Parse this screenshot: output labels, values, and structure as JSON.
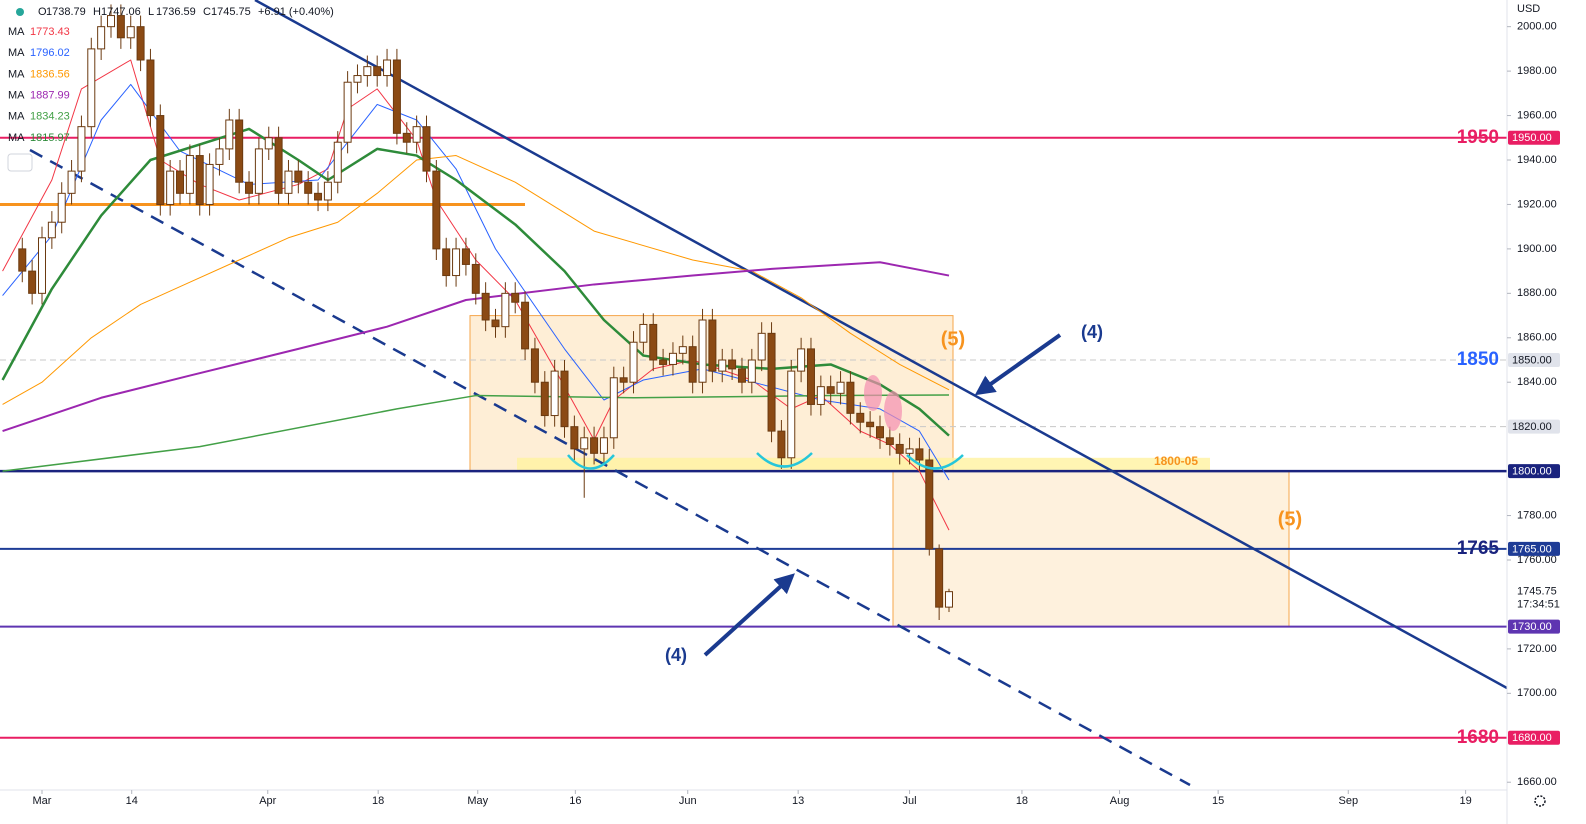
{
  "chart_data": {
    "type": "candlestick",
    "header": {
      "items": [
        {
          "key": "O",
          "value": "1738.79"
        },
        {
          "key": "H",
          "value": "1747.06"
        },
        {
          "key": "L",
          "value": "1736.59"
        },
        {
          "key": "C",
          "value": "1745.75"
        }
      ],
      "change": "+6.91 (+0.40%)"
    },
    "currency": "USD",
    "xlim": [
      -4.26,
      148.6
    ],
    "ylim": [
      1652,
      2012
    ],
    "xticks": [
      {
        "value": 0,
        "label": "Mar"
      },
      {
        "value": 9.1,
        "label": "14"
      },
      {
        "value": 22.9,
        "label": "Apr"
      },
      {
        "value": 34.1,
        "label": "18"
      },
      {
        "value": 44.2,
        "label": "May"
      },
      {
        "value": 54.1,
        "label": "16"
      },
      {
        "value": 65.5,
        "label": "Jun"
      },
      {
        "value": 76.7,
        "label": "13"
      },
      {
        "value": 88,
        "label": "Jul"
      },
      {
        "value": 99.4,
        "label": "18"
      },
      {
        "value": 109.3,
        "label": "Aug"
      },
      {
        "value": 119.3,
        "label": "15"
      },
      {
        "value": 132.5,
        "label": "Sep"
      },
      {
        "value": 144.4,
        "label": "19"
      }
    ],
    "yticks": [
      {
        "value": 1660,
        "label": "1660.00"
      },
      {
        "value": 1700,
        "label": "1700.00"
      },
      {
        "value": 1720,
        "label": "1720.00"
      },
      {
        "value": 1760,
        "label": "1760.00"
      },
      {
        "value": 1780,
        "label": "1780.00"
      },
      {
        "value": 1840,
        "label": "1840.00"
      },
      {
        "value": 1860,
        "label": "1860.00"
      },
      {
        "value": 1880,
        "label": "1880.00"
      },
      {
        "value": 1900,
        "label": "1900.00"
      },
      {
        "value": 1920,
        "label": "1920.00"
      },
      {
        "value": 1940,
        "label": "1940.00"
      },
      {
        "value": 1960,
        "label": "1960.00"
      },
      {
        "value": 1980,
        "label": "1980.00"
      },
      {
        "value": 2000,
        "label": "2000.00"
      }
    ],
    "grid": false,
    "up_color": "#ffffff",
    "down_color": "#8b4a14",
    "wick_color": "#6b3a10",
    "candles": {
      "x": [
        -2,
        -1,
        0,
        1,
        2,
        3,
        4,
        5,
        6,
        7,
        8,
        9,
        10,
        11,
        12,
        13,
        14,
        15,
        16,
        17,
        18,
        19,
        20,
        21,
        22,
        23,
        24,
        25,
        26,
        27,
        28,
        29,
        30,
        31,
        32,
        33,
        34,
        35,
        36,
        37,
        38,
        39,
        40,
        41,
        42,
        43,
        44,
        45,
        46,
        47,
        48,
        49,
        50,
        51,
        52,
        53,
        54,
        55,
        56,
        57,
        58,
        59,
        60,
        61,
        62,
        63,
        64,
        65,
        66,
        67,
        68,
        69,
        70,
        71,
        72,
        73,
        74,
        75,
        76,
        77,
        78,
        79,
        80,
        81,
        82,
        83,
        84,
        85,
        86,
        87,
        88,
        89,
        90,
        91,
        92
      ],
      "open": [
        1900,
        1890,
        1880,
        1905,
        1912,
        1925,
        1935,
        1955,
        1990,
        2000,
        2005,
        1995,
        2000,
        1985,
        1960,
        1920,
        1935,
        1925,
        1942,
        1920,
        1938,
        1945,
        1958,
        1930,
        1925,
        1945,
        1950,
        1925,
        1935,
        1930,
        1925,
        1922,
        1930,
        1948,
        1975,
        1978,
        1982,
        1978,
        1985,
        1952,
        1948,
        1955,
        1935,
        1900,
        1888,
        1900,
        1893,
        1880,
        1868,
        1865,
        1880,
        1876,
        1855,
        1840,
        1825,
        1845,
        1820,
        1810,
        1815,
        1808,
        1815,
        1842,
        1840,
        1858,
        1866,
        1850,
        1848,
        1853,
        1856,
        1840,
        1868,
        1845,
        1850,
        1846,
        1840,
        1850,
        1862,
        1818,
        1806,
        1845,
        1855,
        1830,
        1838,
        1835,
        1840,
        1826,
        1822,
        1820,
        1815,
        1812,
        1808,
        1810,
        1805,
        1765,
        1738.79
      ],
      "high": [
        1905,
        1895,
        1910,
        1917,
        1930,
        1940,
        1960,
        1995,
        2005,
        2010,
        2010,
        2005,
        2005,
        1990,
        1965,
        1940,
        1940,
        1947,
        1947,
        1943,
        1950,
        1963,
        1963,
        1935,
        1950,
        1955,
        1955,
        1940,
        1940,
        1935,
        1930,
        1935,
        1953,
        1980,
        1983,
        1987,
        1987,
        1990,
        1990,
        1957,
        1960,
        1960,
        1940,
        1905,
        1905,
        1905,
        1898,
        1885,
        1873,
        1885,
        1885,
        1881,
        1860,
        1845,
        1850,
        1850,
        1825,
        1820,
        1820,
        1820,
        1847,
        1847,
        1863,
        1871,
        1871,
        1855,
        1858,
        1861,
        1861,
        1873,
        1873,
        1855,
        1855,
        1851,
        1855,
        1867,
        1867,
        1823,
        1850,
        1860,
        1860,
        1843,
        1843,
        1845,
        1845,
        1831,
        1827,
        1825,
        1820,
        1817,
        1815,
        1815,
        1810,
        1767,
        1747.06
      ],
      "low": [
        1885,
        1875,
        1875,
        1900,
        1907,
        1920,
        1930,
        1950,
        1985,
        1995,
        1990,
        1990,
        1980,
        1955,
        1915,
        1915,
        1920,
        1920,
        1915,
        1915,
        1933,
        1940,
        1925,
        1920,
        1920,
        1940,
        1920,
        1920,
        1925,
        1920,
        1917,
        1917,
        1925,
        1943,
        1970,
        1973,
        1973,
        1973,
        1947,
        1943,
        1943,
        1930,
        1895,
        1883,
        1883,
        1888,
        1875,
        1863,
        1860,
        1860,
        1871,
        1850,
        1835,
        1820,
        1820,
        1815,
        1805,
        1788,
        1803,
        1803,
        1810,
        1835,
        1835,
        1853,
        1845,
        1843,
        1843,
        1848,
        1835,
        1835,
        1840,
        1840,
        1841,
        1835,
        1835,
        1845,
        1813,
        1801,
        1801,
        1840,
        1825,
        1825,
        1830,
        1830,
        1821,
        1817,
        1815,
        1810,
        1807,
        1803,
        1803,
        1800,
        1762,
        1733,
        1736.59
      ],
      "close": [
        1890,
        1880,
        1905,
        1912,
        1925,
        1935,
        1955,
        1990,
        2000,
        2005,
        1995,
        2000,
        1985,
        1960,
        1920,
        1935,
        1925,
        1942,
        1920,
        1938,
        1945,
        1958,
        1930,
        1925,
        1945,
        1950,
        1925,
        1935,
        1930,
        1925,
        1922,
        1930,
        1948,
        1975,
        1978,
        1982,
        1978,
        1985,
        1952,
        1948,
        1955,
        1935,
        1900,
        1888,
        1900,
        1893,
        1880,
        1868,
        1865,
        1880,
        1876,
        1855,
        1840,
        1825,
        1845,
        1820,
        1810,
        1815,
        1808,
        1815,
        1842,
        1840,
        1858,
        1866,
        1850,
        1848,
        1853,
        1856,
        1840,
        1868,
        1845,
        1850,
        1846,
        1840,
        1850,
        1862,
        1818,
        1806,
        1845,
        1855,
        1830,
        1838,
        1835,
        1840,
        1826,
        1822,
        1820,
        1815,
        1812,
        1808,
        1810,
        1805,
        1765,
        1738.79,
        1745.75
      ]
    },
    "series": [
      {
        "name": "MA",
        "legend_value": "1773.43",
        "color": "#f23645",
        "line_width": 1,
        "x": [
          -4,
          1,
          4,
          9,
          12,
          16,
          20,
          26,
          29,
          31,
          34,
          38,
          40,
          44,
          48,
          52,
          56,
          58,
          62,
          66,
          72,
          76,
          79,
          83,
          86,
          89,
          92
        ],
        "values": [
          1890,
          1931,
          1972,
          1985,
          1940,
          1929,
          1922,
          1929,
          1936,
          1963,
          1972,
          1949,
          1922,
          1895,
          1877,
          1846,
          1814,
          1832,
          1846,
          1850,
          1841,
          1828,
          1834,
          1818,
          1812,
          1800,
          1773.43
        ]
      },
      {
        "name": "MA",
        "legend_value": "1796.02",
        "color": "#2962ff",
        "line_width": 1,
        "x": [
          -4,
          1,
          6,
          9,
          14,
          21,
          28,
          34,
          38,
          42,
          46,
          53,
          57,
          61,
          67,
          73,
          79,
          85,
          89,
          92
        ],
        "values": [
          1879,
          1906,
          1958,
          1974,
          1944,
          1929,
          1931,
          1965,
          1958,
          1936,
          1900,
          1855,
          1832,
          1841,
          1846,
          1839,
          1832,
          1828,
          1818,
          1796.02
        ]
      },
      {
        "name": "MA",
        "legend_value": "1836.56",
        "color": "#ff9800",
        "line_width": 1,
        "x": [
          -4,
          0,
          5,
          10,
          15,
          20,
          25,
          30,
          34,
          38,
          42,
          48,
          56,
          66,
          72,
          77,
          82,
          87,
          92
        ],
        "values": [
          1830,
          1840,
          1860,
          1875,
          1885,
          1895,
          1905,
          1912,
          1925,
          1940,
          1942,
          1930,
          1908,
          1895,
          1890,
          1878,
          1862,
          1848,
          1836.56
        ]
      },
      {
        "name": "MA",
        "legend_value": "1887.99",
        "color": "#9c27b0",
        "line_width": 2,
        "x": [
          -4,
          6,
          15,
          26,
          35,
          43,
          56,
          66,
          74,
          85,
          92
        ],
        "values": [
          1818,
          1833,
          1843,
          1855,
          1865,
          1877,
          1884,
          1888,
          1891,
          1894,
          1887.99
        ]
      },
      {
        "name": "MA",
        "legend_value": "1834.23",
        "color": "#43a047",
        "line_width": 1.5,
        "x": [
          -4,
          16,
          36,
          44,
          60,
          80,
          92
        ],
        "values": [
          1800,
          1811,
          1828,
          1834,
          1833,
          1834,
          1834.23
        ]
      },
      {
        "name": "MA",
        "legend_value": "1815.97",
        "color": "#2e8b3a",
        "line_width": 2.5,
        "x": [
          -4,
          1,
          6,
          11,
          21,
          26,
          29,
          34,
          38,
          42,
          48,
          53,
          57,
          61,
          67,
          74,
          80,
          85,
          89,
          92
        ],
        "values": [
          1841,
          1882,
          1915,
          1940,
          1954,
          1940,
          1931,
          1945,
          1942,
          1931,
          1911,
          1890,
          1868,
          1852,
          1848,
          1846,
          1848,
          1839,
          1828,
          1815.97
        ]
      }
    ],
    "levels": [
      {
        "value": 1950,
        "color": "#e91e63",
        "tag": "1950.00",
        "big_label": "1950",
        "label_color": "#e91e63"
      },
      {
        "value": 1920,
        "color": "#f7931e"
      },
      {
        "value": 1850,
        "color": "#c8c8c8",
        "dash": true,
        "tag": "1850.00",
        "big_label": "1850",
        "label_color": "#2962ff"
      },
      {
        "value": 1820,
        "color": "#c8c8c8",
        "dash": true,
        "tag": "1820.00"
      },
      {
        "value": 1800,
        "color": "#1a237e",
        "tag": "1800.00"
      },
      {
        "value": 1765,
        "color": "#1e3c96",
        "tag": "1765.00",
        "big_label": "1765",
        "label_color": "#1a237e"
      },
      {
        "value": 1730,
        "color": "#5e35b1",
        "tag": "1730.00"
      },
      {
        "value": 1680,
        "color": "#e91e63",
        "tag": "1680.00",
        "big_label": "1680",
        "label_color": "#e91e63"
      }
    ],
    "last": {
      "value": 1745.75,
      "time": "17:34:51"
    },
    "zone_label": "1800-05",
    "wave_labels": [
      "(5)",
      "(5)",
      "(4)",
      "(4)"
    ]
  }
}
